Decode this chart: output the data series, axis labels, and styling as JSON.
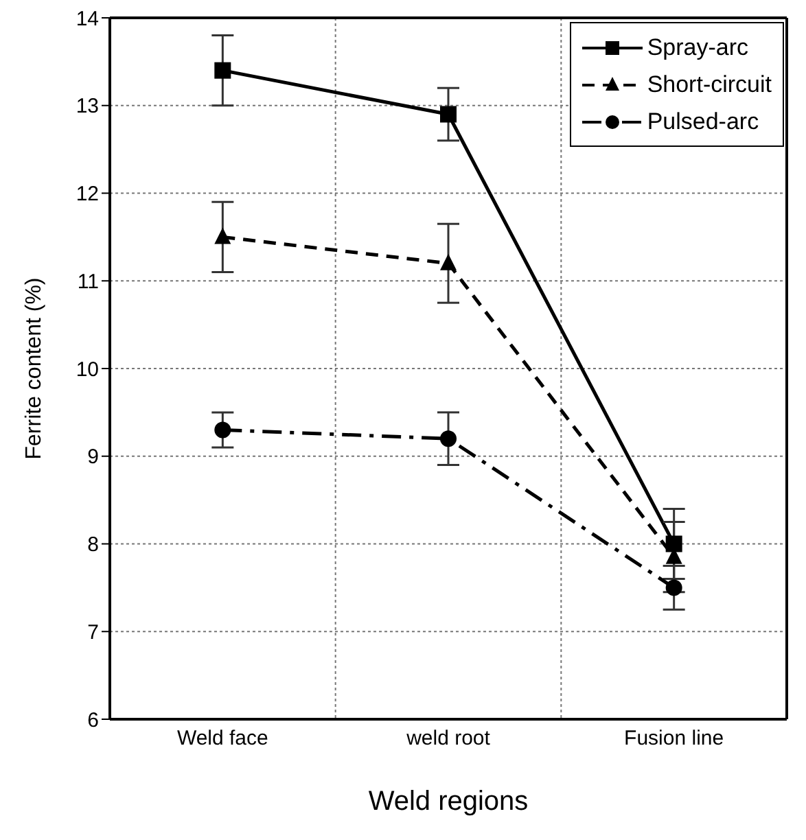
{
  "chart_data": {
    "type": "line",
    "xlabel": "Weld regions",
    "ylabel": "Ferrite content (%)",
    "categories": [
      "Weld face",
      "weld root",
      "Fusion line"
    ],
    "ylim": [
      6,
      14
    ],
    "yticks": [
      6,
      7,
      8,
      9,
      10,
      11,
      12,
      13,
      14
    ],
    "grid": true,
    "legend": "top right",
    "series": [
      {
        "name": "Spray-arc",
        "color": "#000000",
        "marker": "square",
        "line_style": "solid",
        "values": [
          13.4,
          12.9,
          8.0
        ],
        "errors": [
          0.4,
          0.3,
          0.4
        ]
      },
      {
        "name": "Short-circuit",
        "color": "#000000",
        "marker": "triangle",
        "line_style": "dashed",
        "values": [
          11.5,
          11.2,
          7.85
        ],
        "errors": [
          0.4,
          0.45,
          0.4
        ]
      },
      {
        "name": "Pulsed-arc",
        "color": "#000000",
        "marker": "circle",
        "line_style": "dashdot",
        "values": [
          9.3,
          9.2,
          7.5
        ],
        "errors": [
          0.2,
          0.3,
          0.25
        ]
      }
    ]
  }
}
